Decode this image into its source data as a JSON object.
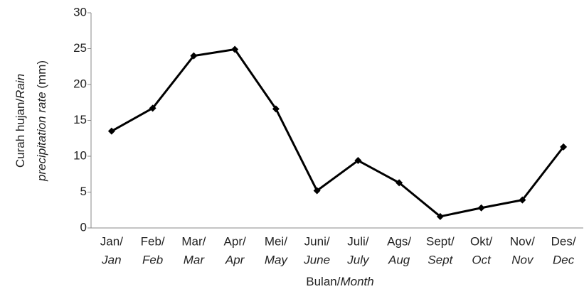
{
  "chart_data": {
    "type": "line",
    "categories": [
      [
        "Jan/",
        "Jan"
      ],
      [
        "Feb/",
        "Feb"
      ],
      [
        "Mar/",
        "Mar"
      ],
      [
        "Apr/",
        "Apr"
      ],
      [
        "Mei/",
        "May"
      ],
      [
        "Juni/",
        "June"
      ],
      [
        "Juli/",
        "July"
      ],
      [
        "Ags/",
        "Aug"
      ],
      [
        "Sept/",
        "Sept"
      ],
      [
        "Okt/",
        "Oct"
      ],
      [
        "Nov/",
        "Nov"
      ],
      [
        "Des/",
        "Dec"
      ]
    ],
    "series": [
      {
        "color": "#000000",
        "values": [
          13.5,
          16.7,
          24.0,
          24.9,
          16.6,
          5.2,
          9.4,
          6.3,
          1.6,
          2.8,
          3.9,
          11.3
        ]
      }
    ],
    "ylim": [
      0,
      30
    ],
    "yticks": [
      0,
      5,
      10,
      15,
      20,
      25,
      30
    ],
    "ylabel": [
      "Curah hujan/",
      "Rain",
      "precipitation rate",
      "(mm)"
    ],
    "xlabel": [
      "Bulan/",
      "Month"
    ]
  }
}
